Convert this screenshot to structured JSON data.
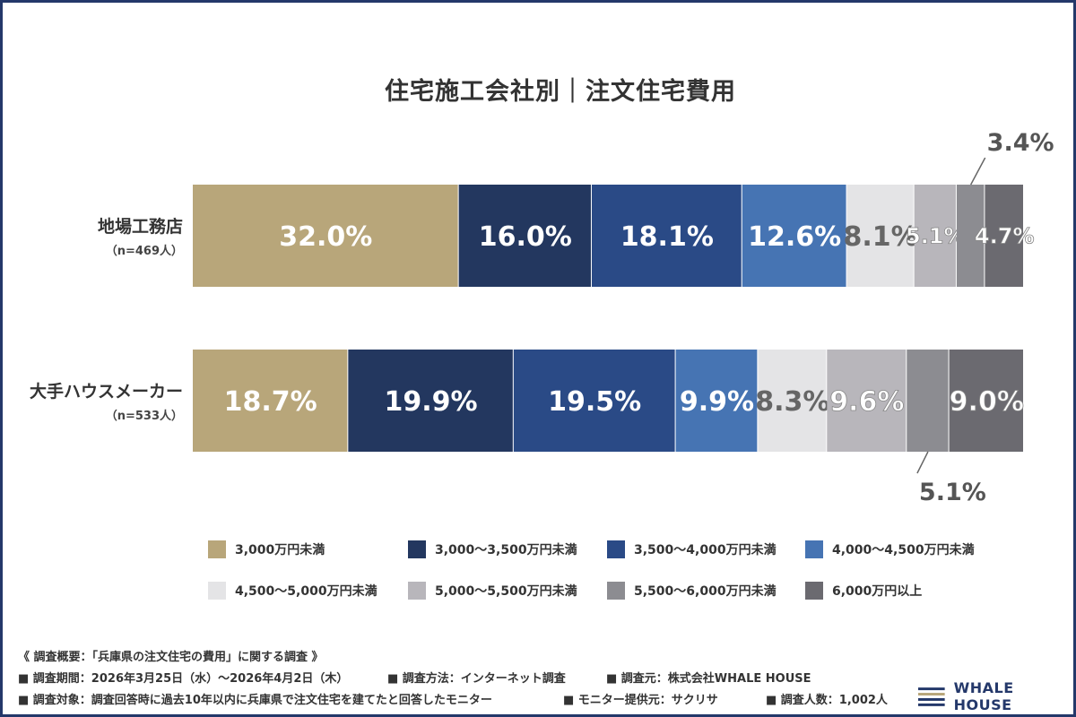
{
  "title": "住宅施工会社別｜注文住宅費用",
  "chart_data": {
    "type": "bar",
    "orientation": "horizontal-stacked-100",
    "categories": [
      "地場工務店",
      "大手ハウスメーカー"
    ],
    "category_notes": [
      "（n=469人）",
      "（n=533人）"
    ],
    "series": [
      {
        "name": "3,000万円未満",
        "color": "#b8a67a",
        "values": [
          32.0,
          18.7
        ],
        "label_color": "#ffffff"
      },
      {
        "name": "3,000〜3,500万円未満",
        "color": "#23375f",
        "values": [
          16.0,
          19.9
        ],
        "label_color": "#ffffff"
      },
      {
        "name": "3,500〜4,000万円未満",
        "color": "#2a4a86",
        "values": [
          18.1,
          19.5
        ],
        "label_color": "#ffffff"
      },
      {
        "name": "4,000〜4,500万円未満",
        "color": "#4674b3",
        "values": [
          12.6,
          9.9
        ],
        "label_color": "#ffffff"
      },
      {
        "name": "4,500〜5,000万円未満",
        "color": "#e4e4e6",
        "values": [
          8.1,
          8.3
        ],
        "label_color": "#666666"
      },
      {
        "name": "5,000〜5,500万円未満",
        "color": "#b8b6bb",
        "values": [
          5.1,
          9.6
        ],
        "label_color": "#ffffff"
      },
      {
        "name": "5,500〜6,000万円未満",
        "color": "#8c8c91",
        "values": [
          3.4,
          5.1
        ],
        "label_color": "#ffffff"
      },
      {
        "name": "6,000万円以上",
        "color": "#6b6a70",
        "values": [
          4.7,
          9.0
        ],
        "label_color": "#ffffff"
      }
    ],
    "data_labels": [
      [
        "32.0%",
        "16.0%",
        "18.1%",
        "12.6%",
        "8.1%",
        "5.1%",
        "3.4%",
        "4.7%"
      ],
      [
        "18.7%",
        "19.9%",
        "19.5%",
        "9.9%",
        "8.3%",
        "9.6%",
        "5.1%",
        "9.0%"
      ]
    ],
    "callouts": [
      {
        "row": 0,
        "segment": 6,
        "position": "above"
      },
      {
        "row": 1,
        "segment": 6,
        "position": "below"
      }
    ],
    "legend_position": "bottom",
    "grid": false
  },
  "notes": {
    "header": "《 調査概要：「兵庫県の注文住宅の費用」に関する調査 》",
    "period": "■ 調査期間：2026年3月25日（水）〜2026年4月2日（木）",
    "method": "■ 調査方法：インターネット調査",
    "source": "■ 調査元：株式会社WHALE HOUSE",
    "target": "■ 調査対象：調査回答時に過去10年以内に兵庫県で注文住宅を建てたと回答したモニター",
    "provider": "■ モニター提供元：サクリサ",
    "respondents": "■ 調査人数：1,002人"
  },
  "logo": {
    "text": "WHALE HOUSE",
    "icon": "whale-house-logo-icon",
    "color": "#24386a"
  }
}
